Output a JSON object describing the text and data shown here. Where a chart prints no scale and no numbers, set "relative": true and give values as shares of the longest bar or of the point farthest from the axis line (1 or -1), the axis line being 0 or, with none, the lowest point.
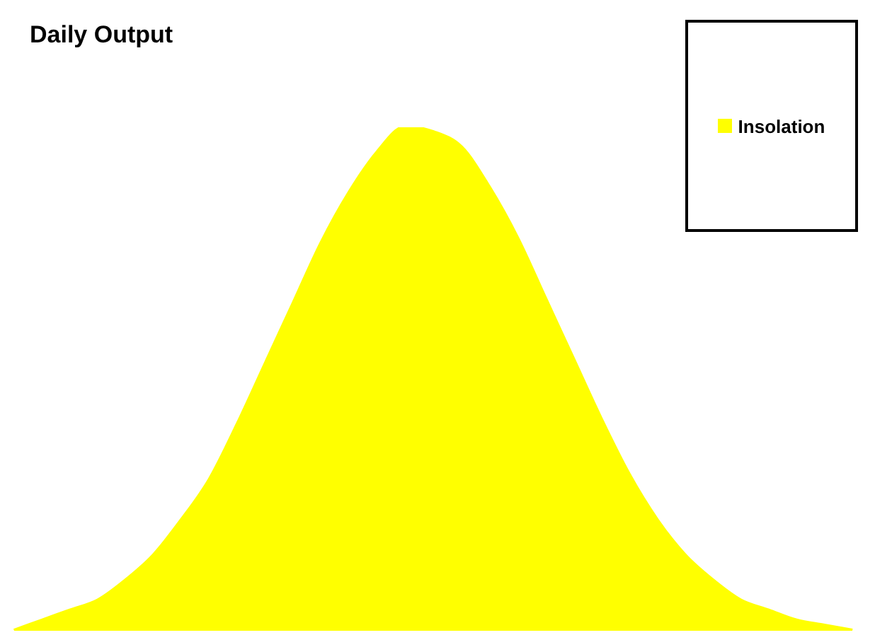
{
  "chart_data": {
    "type": "area",
    "title": "Daily Output",
    "relative": true,
    "legend": "top right",
    "categories": [
      null,
      null,
      null,
      null,
      null,
      null,
      null,
      null,
      null,
      null,
      null,
      null,
      null,
      null,
      null,
      null,
      null,
      null,
      null,
      null,
      null,
      null,
      null,
      null,
      null,
      null,
      null,
      null,
      null,
      null,
      null
    ],
    "series": [
      {
        "name": "Insolation",
        "color": "#ffff00",
        "values": [
          0,
          0.02,
          0.04,
          0.06,
          0.1,
          0.15,
          0.22,
          0.3,
          0.41,
          0.53,
          0.65,
          0.77,
          0.87,
          0.95,
          1,
          0.99,
          0.96,
          0.88,
          0.78,
          0.66,
          0.54,
          0.42,
          0.31,
          0.22,
          0.15,
          0.1,
          0.06,
          0.04,
          0.02,
          0.01,
          0
        ]
      }
    ]
  }
}
